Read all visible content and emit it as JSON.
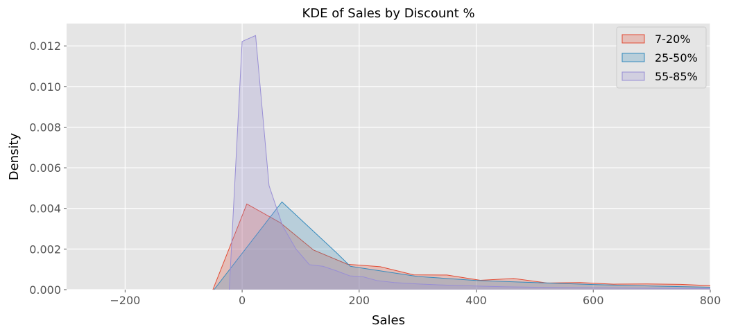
{
  "chart_data": {
    "type": "area",
    "title": "KDE of Sales by Discount %",
    "xlabel": "Sales",
    "ylabel": "Density",
    "xlim": [
      -300,
      800
    ],
    "ylim": [
      0,
      0.0131
    ],
    "x_ticks": [
      -200,
      0,
      200,
      400,
      600,
      800
    ],
    "x_tick_labels": [
      "−200",
      "0",
      "200",
      "400",
      "600",
      "800"
    ],
    "y_ticks": [
      0,
      0.002,
      0.004,
      0.006,
      0.008,
      0.01,
      0.012
    ],
    "y_tick_labels": [
      "0.000",
      "0.002",
      "0.004",
      "0.006",
      "0.008",
      "0.010",
      "0.012"
    ],
    "grid": true,
    "legend_position": "top-right",
    "series": [
      {
        "name": "7-20%",
        "color": "#E24A33",
        "fill": "#E24A33",
        "points": [
          [
            -50,
            0
          ],
          [
            8,
            0.00422
          ],
          [
            65,
            0.0033
          ],
          [
            122,
            0.00195
          ],
          [
            180,
            0.00125
          ],
          [
            236,
            0.00113
          ],
          [
            293,
            0.00073
          ],
          [
            350,
            0.00072
          ],
          [
            407,
            0.00046
          ],
          [
            464,
            0.00055
          ],
          [
            521,
            0.00033
          ],
          [
            578,
            0.00035
          ],
          [
            635,
            0.00027
          ],
          [
            692,
            0.00028
          ],
          [
            749,
            0.00026
          ],
          [
            800,
            0.0002
          ]
        ]
      },
      {
        "name": "25-50%",
        "color": "#348ABD",
        "fill": "#348ABD",
        "points": [
          [
            -48,
            0
          ],
          [
            68,
            0.00432
          ],
          [
            160,
            0.00185
          ],
          [
            185,
            0.00115
          ],
          [
            300,
            0.00065
          ],
          [
            400,
            0.00045
          ],
          [
            500,
            0.00035
          ],
          [
            600,
            0.00025
          ],
          [
            700,
            0.00018
          ],
          [
            800,
            0.00012
          ]
        ]
      },
      {
        "name": "55-85%",
        "color": "#988ED5",
        "fill": "#988ED5",
        "points": [
          [
            -22,
            0
          ],
          [
            0,
            0.01222
          ],
          [
            23,
            0.01251
          ],
          [
            46,
            0.00512
          ],
          [
            69,
            0.00315
          ],
          [
            92,
            0.002
          ],
          [
            115,
            0.00123
          ],
          [
            138,
            0.00115
          ],
          [
            161,
            0.00093
          ],
          [
            184,
            0.00068
          ],
          [
            207,
            0.00063
          ],
          [
            230,
            0.00045
          ],
          [
            260,
            0.00035
          ],
          [
            300,
            0.00028
          ],
          [
            350,
            0.00022
          ],
          [
            400,
            0.00018
          ],
          [
            450,
            0.00014
          ],
          [
            500,
            0.00012
          ],
          [
            600,
            9e-05
          ],
          [
            700,
            7e-05
          ],
          [
            800,
            5e-05
          ]
        ]
      }
    ]
  },
  "style": {
    "plot_background": "#E5E5E5",
    "grid_color": "#FFFFFF"
  }
}
